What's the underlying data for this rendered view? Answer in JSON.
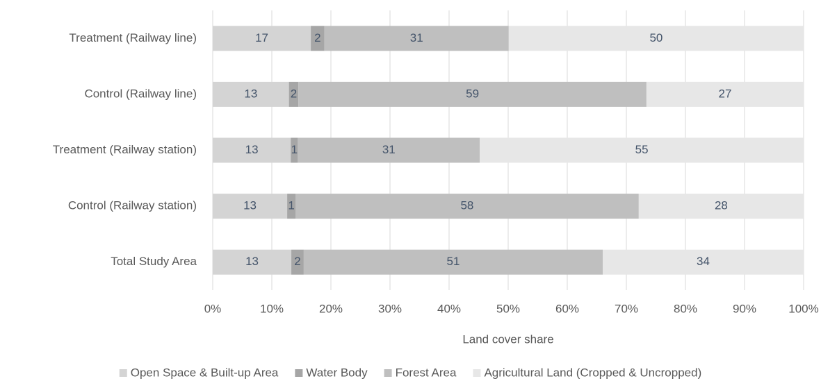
{
  "chart_data": {
    "type": "stacked_barh",
    "categories": [
      "Treatment (Railway line)",
      "Control (Railway line)",
      "Treatment (Railway station)",
      "Control (Railway station)",
      "Total Study Area"
    ],
    "series": [
      {
        "name": "Open Space & Built-up Area",
        "color": "#d4d4d4",
        "values": [
          16.6,
          12.9,
          13.2,
          12.6,
          13.3
        ],
        "value_labels": [
          "17",
          "13",
          "13",
          "13",
          "13"
        ]
      },
      {
        "name": "Water Body",
        "color": "#a6a6a6",
        "values": [
          2.3,
          1.6,
          1.2,
          1.4,
          2.1
        ],
        "value_labels": [
          "2",
          "2",
          "1",
          "1",
          "2"
        ]
      },
      {
        "name": "Forest Area",
        "color": "#bfbfbf",
        "values": [
          31.2,
          58.9,
          30.8,
          58.1,
          50.6
        ],
        "value_labels": [
          "31",
          "59",
          "31",
          "58",
          "51"
        ]
      },
      {
        "name": "Agricultural Land (Cropped & Uncropped)",
        "color": "#e7e7e7",
        "values": [
          49.9,
          26.6,
          54.8,
          27.9,
          34.0
        ],
        "value_labels": [
          "50",
          "27",
          "55",
          "28",
          "34"
        ]
      }
    ],
    "xlabel": "Land cover share",
    "xlim": [
      0,
      100
    ],
    "xticks": [
      {
        "value": 0,
        "label": "0%"
      },
      {
        "value": 10,
        "label": "10%"
      },
      {
        "value": 20,
        "label": "20%"
      },
      {
        "value": 30,
        "label": "30%"
      },
      {
        "value": 40,
        "label": "40%"
      },
      {
        "value": 50,
        "label": "50%"
      },
      {
        "value": 60,
        "label": "60%"
      },
      {
        "value": 70,
        "label": "70%"
      },
      {
        "value": 80,
        "label": "80%"
      },
      {
        "value": 90,
        "label": "90%"
      },
      {
        "value": 100,
        "label": "100%"
      }
    ],
    "grid": true,
    "legend": "bottom"
  }
}
